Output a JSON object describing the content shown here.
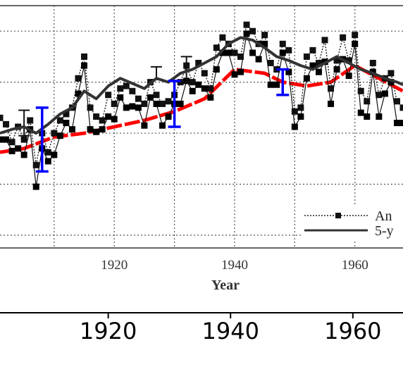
{
  "chart_data": [
    {
      "type": "line",
      "xlabel": "Year",
      "ylabel": "",
      "xlim": [
        1901,
        1968
      ],
      "ylim": [
        -0.95,
        0.95
      ],
      "grid": true,
      "x_ticks": [
        {
          "value": 1920,
          "label": "1920"
        },
        {
          "value": 1940,
          "label": "1940"
        },
        {
          "value": 1960,
          "label": "1960"
        }
      ],
      "legend_position": "bottom-right",
      "legend": [
        {
          "label": "An",
          "style": "dotted-marker"
        },
        {
          "label": "5-y",
          "style": "solid"
        }
      ],
      "series": [
        {
          "name": "An",
          "style": "dotted-marker",
          "x": [
            1901,
            1902,
            1903,
            1904,
            1905,
            1906,
            1907,
            1908,
            1909,
            1910,
            1911,
            1912,
            1913,
            1914,
            1915,
            1916,
            1917,
            1918,
            1919,
            1920,
            1921,
            1922,
            1923,
            1924,
            1925,
            1926,
            1927,
            1928,
            1929,
            1930,
            1931,
            1932,
            1933,
            1934,
            1935,
            1936,
            1937,
            1938,
            1939,
            1940,
            1941,
            1942,
            1943,
            1944,
            1945,
            1946,
            1947,
            1948,
            1949,
            1950,
            1951,
            1952,
            1953,
            1954,
            1955,
            1956,
            1957,
            1958,
            1959,
            1960,
            1961,
            1962,
            1963,
            1964,
            1965,
            1966,
            1967,
            1968
          ],
          "y": [
            0.07,
            0.02,
            -0.12,
            0.0,
            -0.1,
            0.05,
            -0.3,
            -0.05,
            -0.2,
            -0.05,
            0.05,
            0.1,
            0.15,
            0.38,
            0.55,
            0.15,
            0.08,
            0.05,
            0.25,
            0.18,
            0.3,
            0.32,
            0.28,
            0.22,
            0.18,
            0.35,
            0.25,
            0.18,
            0.2,
            0.25,
            0.35,
            0.48,
            0.35,
            0.5,
            0.42,
            0.3,
            0.62,
            0.7,
            0.65,
            0.58,
            0.55,
            0.8,
            0.75,
            0.65,
            0.72,
            0.5,
            0.45,
            0.65,
            0.6,
            0.12,
            0.15,
            0.55,
            0.6,
            0.5,
            0.68,
            0.3,
            0.52,
            0.7,
            0.52,
            0.72,
            0.28,
            0.2,
            0.5,
            0.25,
            0.38,
            0.42,
            0.2,
            0.15
          ],
          "error_bars": [
            {
              "x": 1905,
              "y": 0.03,
              "err": 0.1
            },
            {
              "x": 1927,
              "y": 0.42,
              "err": 0.05
            },
            {
              "x": 1932,
              "y": 0.45,
              "err": 0.1
            }
          ]
        },
        {
          "name": "5-y",
          "style": "solid",
          "x": [
            1901,
            1903,
            1905,
            1907,
            1909,
            1911,
            1913,
            1915,
            1917,
            1919,
            1921,
            1923,
            1925,
            1927,
            1929,
            1931,
            1933,
            1935,
            1937,
            1939,
            1941,
            1943,
            1945,
            1947,
            1949,
            1951,
            1953,
            1955,
            1957,
            1959,
            1961,
            1963,
            1965,
            1967,
            1968
          ],
          "y": [
            -0.05,
            -0.02,
            0.0,
            -0.05,
            0.02,
            0.1,
            0.15,
            0.28,
            0.22,
            0.32,
            0.38,
            0.34,
            0.3,
            0.38,
            0.35,
            0.42,
            0.45,
            0.5,
            0.55,
            0.65,
            0.7,
            0.68,
            0.62,
            0.55,
            0.52,
            0.48,
            0.45,
            0.5,
            0.55,
            0.5,
            0.45,
            0.42,
            0.38,
            0.35,
            0.33
          ]
        },
        {
          "name": "",
          "style": "red-dashed",
          "x": [
            1901,
            1905,
            1910,
            1915,
            1920,
            1925,
            1930,
            1935,
            1940,
            1945,
            1948,
            1952,
            1956,
            1960,
            1964,
            1968
          ],
          "y": [
            -0.2,
            -0.17,
            -0.08,
            -0.05,
            0.0,
            0.05,
            0.12,
            0.22,
            0.45,
            0.42,
            0.35,
            0.32,
            0.35,
            0.48,
            0.38,
            0.28
          ]
        }
      ],
      "error_bars_blue": [
        {
          "x": 1908,
          "y": -0.1,
          "err": 0.25
        },
        {
          "x": 1930,
          "y": 0.18,
          "err": 0.18
        },
        {
          "x": 1948,
          "y": 0.35,
          "err": 0.1
        }
      ]
    }
  ]
}
